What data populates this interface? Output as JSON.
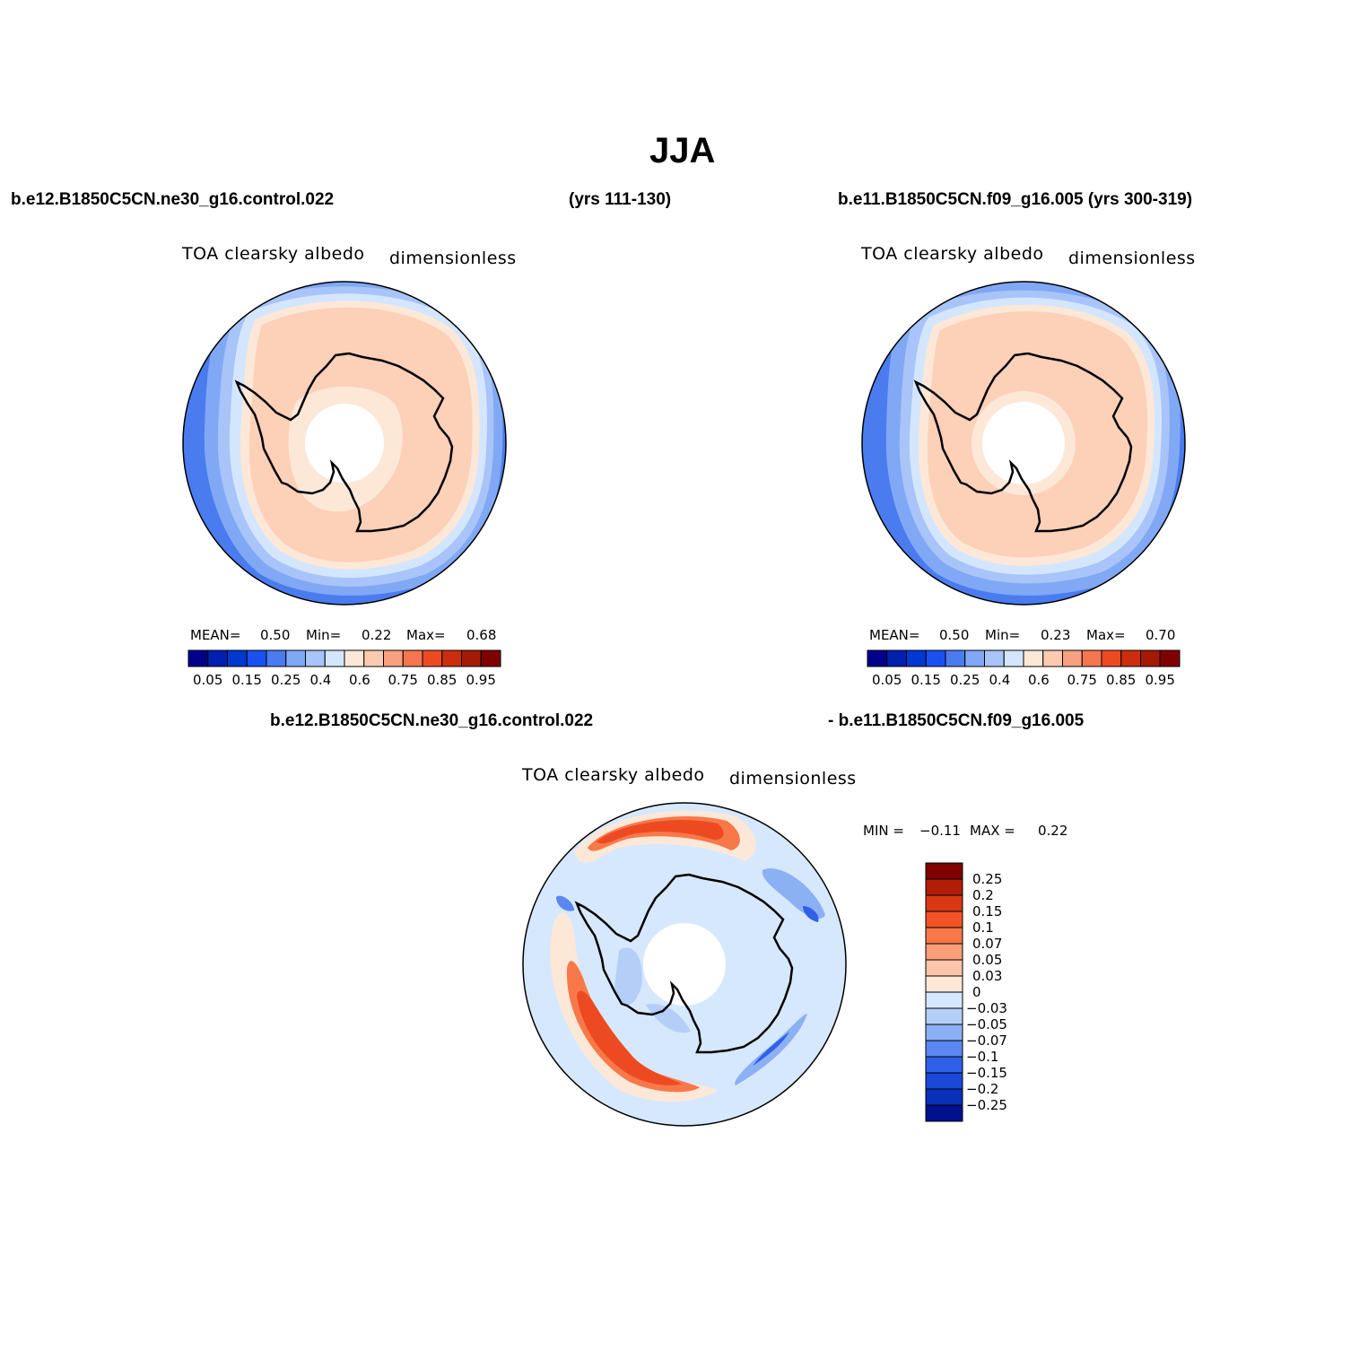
{
  "title": "JJA",
  "top_left": {
    "case": "b.e12.B1850C5CN.ne30_g16.control.022",
    "years": "(yrs 111-130)",
    "variable": "TOA clearsky albedo",
    "units": "dimensionless",
    "stats": {
      "mean_label": "MEAN=",
      "mean": "0.50",
      "min_label": "Min=",
      "min": "0.22",
      "max_label": "Max=",
      "max": "0.68"
    }
  },
  "top_right": {
    "case": "b.e11.B1850C5CN.f09_g16.005 (yrs 300-319)",
    "variable": "TOA clearsky albedo",
    "units": "dimensionless",
    "stats": {
      "mean_label": "MEAN=",
      "mean": "0.50",
      "min_label": "Min=",
      "min": "0.23",
      "max_label": "Max=",
      "max": "0.70"
    }
  },
  "bottom": {
    "case_left": "b.e12.B1850C5CN.ne30_g16.control.022",
    "case_right": "- b.e11.B1850C5CN.f09_g16.005",
    "variable": "TOA clearsky albedo",
    "units": "dimensionless",
    "stats": {
      "min_label": "MIN =",
      "min": "−0.11",
      "max_label": "MAX =",
      "max": "0.22"
    }
  },
  "colorbar_abs": {
    "colors": [
      "#00008b",
      "#0020b0",
      "#0038d0",
      "#1a50f0",
      "#4a7cf0",
      "#80a8f5",
      "#a8c4f8",
      "#d4e6fd",
      "#fde8d8",
      "#fbcbb0",
      "#f8a080",
      "#f57650",
      "#ee4a22",
      "#cc2d0c",
      "#a41a06",
      "#800000"
    ],
    "labels": [
      "0.05",
      "0.15",
      "0.25",
      "0.4",
      "0.6",
      "0.75",
      "0.85",
      "0.95"
    ]
  },
  "colorbar_diff": {
    "colors": [
      "#800000",
      "#b01e06",
      "#d83812",
      "#f25428",
      "#f8784a",
      "#fa9e78",
      "#fcc4a8",
      "#fde8d8",
      "#d6e8fd",
      "#b4cef8",
      "#8cb0f4",
      "#5a88f0",
      "#2e60e8",
      "#1a48d8",
      "#0830b8",
      "#00108f"
    ],
    "labels": [
      "0.25",
      "0.2",
      "0.15",
      "0.1",
      "0.07",
      "0.05",
      "0.03",
      "0",
      "−0.03",
      "−0.05",
      "−0.07",
      "−0.1",
      "−0.15",
      "−0.2",
      "−0.25"
    ]
  },
  "colors": {
    "ocean_dark": "#4a7cf0",
    "ocean_mid": "#80a8f5",
    "ocean_light": "#a8c4f8",
    "edge_pale": "#d4e6fd",
    "peach": "#fdd0b8",
    "peach_pale": "#fde8d8",
    "diff_bg": "#d6e8fd",
    "diff_red": "#f25428",
    "diff_blue": "#2e60e8"
  }
}
